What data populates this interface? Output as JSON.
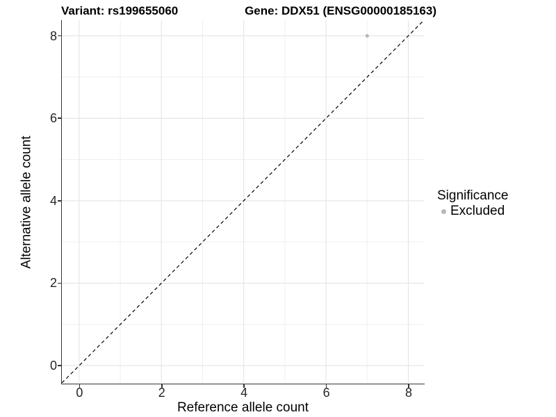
{
  "header": {
    "title_left": "Variant: rs199655060",
    "title_right": "Gene: DDX51 (ENSG00000185163)"
  },
  "chart_data": {
    "type": "scatter",
    "title": "Variant: rs199655060    Gene: DDX51 (ENSG00000185163)",
    "xlabel": "Reference allele count",
    "ylabel": "Alternative allele count",
    "xlim": [
      -0.42,
      8.38
    ],
    "ylim": [
      -0.42,
      8.38
    ],
    "x_ticks": [
      0,
      2,
      4,
      6,
      8
    ],
    "y_ticks": [
      0,
      2,
      4,
      6,
      8
    ],
    "x_minor_ticks": [
      1,
      3,
      5,
      7
    ],
    "y_minor_ticks": [
      1,
      3,
      5,
      7
    ],
    "grid": true,
    "identity_line": {
      "style": "dashed",
      "slope": 1,
      "intercept": 0,
      "color": "#000000"
    },
    "series": [
      {
        "name": "Excluded",
        "color": "#b8b8b8",
        "points": [
          {
            "x": 7,
            "y": 8
          }
        ]
      }
    ],
    "legend": {
      "title": "Significance",
      "position": "right",
      "entries": [
        {
          "label": "Excluded",
          "color": "#b8b8b8"
        }
      ]
    }
  },
  "colors": {
    "background": "#ffffff",
    "grid_major": "#e4e4e4",
    "grid_minor": "#efefef",
    "axis_line": "#333333",
    "tick_text": "#262626",
    "identity_line": "#000000",
    "point": "#b8b8b8"
  }
}
